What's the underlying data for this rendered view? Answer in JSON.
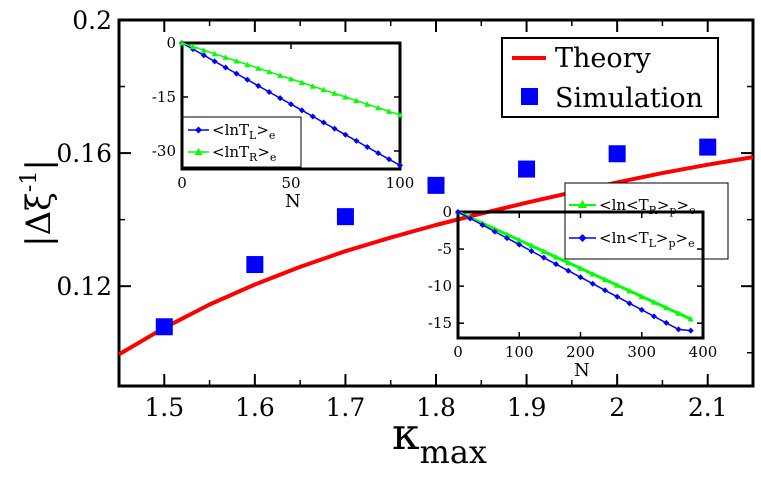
{
  "chart_data": [
    {
      "type": "line",
      "role": "main",
      "xlabel": "κ",
      "xlabel_sub": "max",
      "ylabel": "|Δξ",
      "ylabel_sup": "-1",
      "ylabel_end": "|",
      "xlim": [
        1.45,
        2.15
      ],
      "ylim": [
        0.09,
        0.2
      ],
      "xticks": [
        1.5,
        1.6,
        1.7,
        1.8,
        1.9,
        2,
        2.1
      ],
      "xtick_labels": [
        "1.5",
        "1.6",
        "1.7",
        "1.8",
        "1.9",
        "2",
        "2.1"
      ],
      "yticks": [
        0.12,
        0.16,
        0.2
      ],
      "ytick_labels": [
        "0.12",
        "0.16",
        "0.2"
      ],
      "legend_position": "top-right",
      "series": [
        {
          "name": "Theory",
          "kind": "line",
          "color": "#ff0000",
          "x": [
            1.45,
            1.5,
            1.55,
            1.6,
            1.65,
            1.7,
            1.75,
            1.8,
            1.85,
            1.9,
            1.95,
            2.0,
            2.05,
            2.1,
            2.15
          ],
          "y": [
            0.0995,
            0.1075,
            0.1145,
            0.1205,
            0.1258,
            0.1305,
            0.1346,
            0.1384,
            0.1418,
            0.1451,
            0.1482,
            0.1512,
            0.154,
            0.1565,
            0.1588
          ]
        },
        {
          "name": "Simulation",
          "kind": "marker",
          "color": "#0000ff",
          "x": [
            1.5,
            1.6,
            1.7,
            1.8,
            1.9,
            2.0,
            2.1
          ],
          "y": [
            0.1078,
            0.1265,
            0.1409,
            0.1503,
            0.1552,
            0.1598,
            0.1618
          ]
        }
      ]
    },
    {
      "type": "line",
      "role": "inset-top-left",
      "xlabel": "N",
      "xlim": [
        0,
        100
      ],
      "ylim": [
        -35,
        0
      ],
      "xticks": [
        0,
        50,
        100
      ],
      "xtick_labels": [
        "0",
        "50",
        "100"
      ],
      "yticks": [
        0,
        -15,
        -30
      ],
      "ytick_labels": [
        "0",
        "-15",
        "-30"
      ],
      "legend_position": "bottom-left",
      "series": [
        {
          "name": "<lnT",
          "sub": "L",
          "suffix": ">",
          "suffix_sub": "e",
          "color": "#0000ff",
          "marker": "diamond",
          "x": [
            0,
            5,
            10,
            15,
            20,
            25,
            30,
            35,
            40,
            45,
            50,
            55,
            60,
            65,
            70,
            75,
            80,
            85,
            90,
            95,
            100
          ],
          "y": [
            0,
            -1.7,
            -3.4,
            -5.1,
            -6.8,
            -8.5,
            -10.2,
            -11.9,
            -13.6,
            -15.3,
            -17.0,
            -18.7,
            -20.4,
            -22.1,
            -23.8,
            -25.5,
            -27.2,
            -28.9,
            -30.6,
            -32.3,
            -34.0
          ]
        },
        {
          "name": "<lnT",
          "sub": "R",
          "suffix": ">",
          "suffix_sub": "e",
          "color": "#00ff00",
          "marker": "triangle",
          "x": [
            0,
            5,
            10,
            15,
            20,
            25,
            30,
            35,
            40,
            45,
            50,
            55,
            60,
            65,
            70,
            75,
            80,
            85,
            90,
            95,
            100
          ],
          "y": [
            0,
            -1.0,
            -2.0,
            -3.0,
            -4.0,
            -5.0,
            -6.0,
            -7.0,
            -8.0,
            -9.0,
            -10.0,
            -11.0,
            -12.0,
            -13.0,
            -14.0,
            -15.0,
            -16.0,
            -17.0,
            -18.0,
            -19.0,
            -20.0
          ]
        }
      ]
    },
    {
      "type": "line",
      "role": "inset-bottom-right",
      "xlabel": "N",
      "xlim": [
        0,
        400
      ],
      "ylim": [
        -17,
        0
      ],
      "xticks": [
        0,
        100,
        200,
        300,
        400
      ],
      "xtick_labels": [
        "0",
        "100",
        "200",
        "300",
        "400"
      ],
      "yticks": [
        0,
        -5,
        -10,
        -15
      ],
      "ytick_labels": [
        "0",
        "-5",
        "-10",
        "-15"
      ],
      "legend_position": "top-right",
      "series": [
        {
          "name": "<ln<T",
          "sub": "R",
          "mid": ">",
          "mid_sub": "p",
          "suffix": ">",
          "suffix_sub": "e",
          "color": "#00ff00",
          "marker": "triangle",
          "x": [
            0,
            20,
            40,
            60,
            80,
            100,
            120,
            140,
            160,
            180,
            200,
            220,
            240,
            260,
            280,
            300,
            320,
            340,
            360,
            380
          ],
          "y": [
            0,
            -0.76,
            -1.52,
            -2.28,
            -3.04,
            -3.8,
            -4.56,
            -5.32,
            -6.08,
            -6.84,
            -7.6,
            -8.36,
            -9.12,
            -9.88,
            -10.64,
            -11.4,
            -12.16,
            -12.92,
            -13.68,
            -14.44
          ]
        },
        {
          "name": "<ln<T",
          "sub": "L",
          "mid": ">",
          "mid_sub": "p",
          "suffix": ">",
          "suffix_sub": "e",
          "color": "#0000ff",
          "marker": "diamond",
          "x": [
            0,
            20,
            40,
            60,
            80,
            100,
            120,
            140,
            160,
            180,
            200,
            220,
            240,
            260,
            280,
            300,
            320,
            340,
            360,
            380
          ],
          "y": [
            0,
            -0.88,
            -1.76,
            -2.64,
            -3.52,
            -4.4,
            -5.28,
            -6.16,
            -7.04,
            -7.92,
            -8.8,
            -9.68,
            -10.56,
            -11.44,
            -12.32,
            -13.2,
            -14.08,
            -14.96,
            -15.84,
            -16.0
          ]
        }
      ]
    }
  ]
}
